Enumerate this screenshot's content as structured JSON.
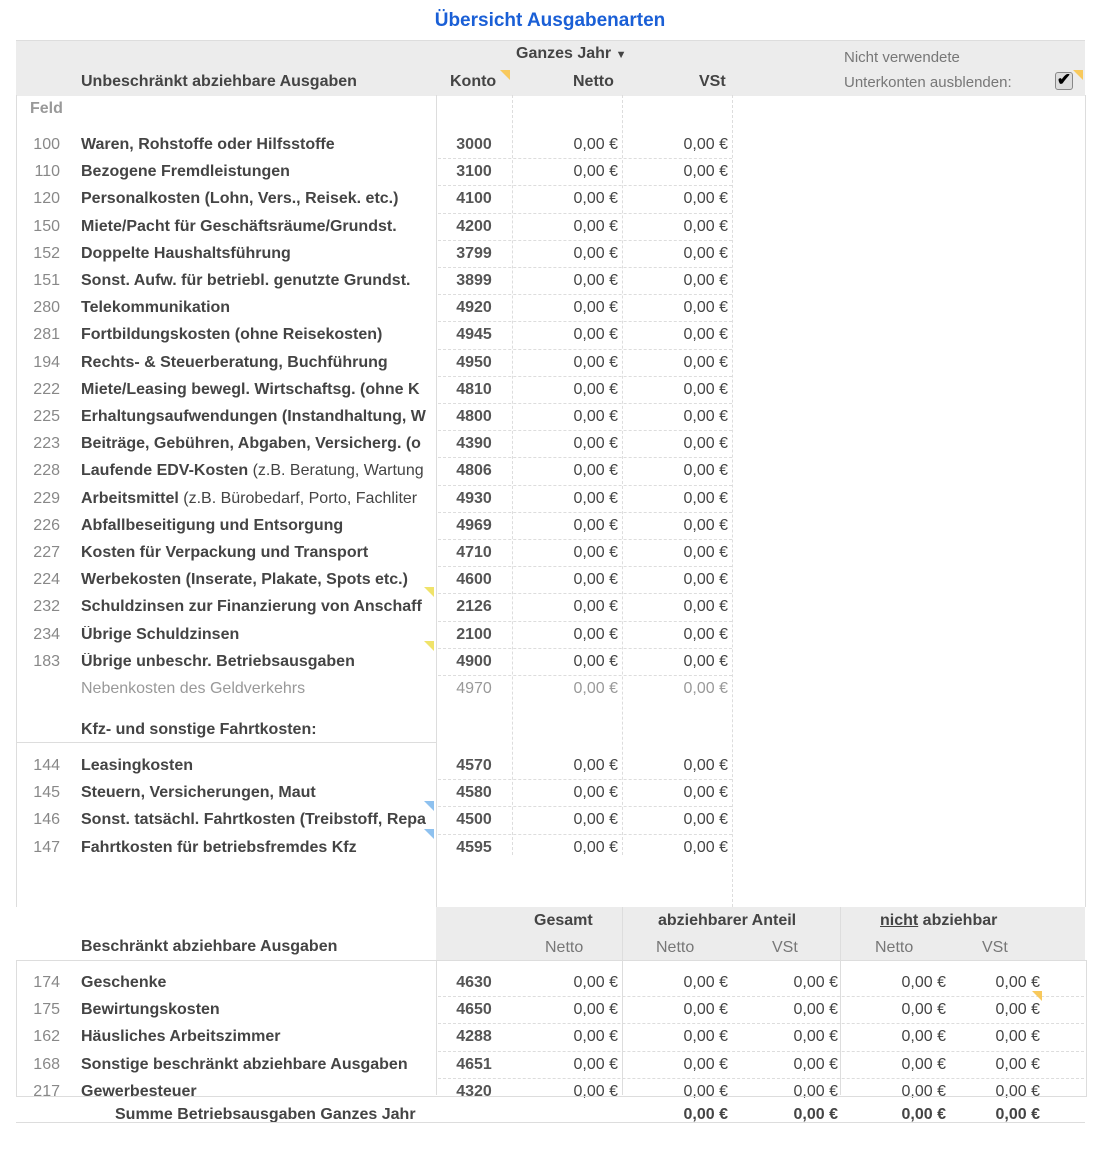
{
  "title": "Übersicht Ausgabenarten",
  "header": {
    "period": "Ganzes Jahr",
    "section1": "Unbeschränkt abziehbare Ausgaben",
    "konto": "Konto",
    "netto": "Netto",
    "vst": "VSt",
    "hide_line1": "Nicht verwendete",
    "hide_line2": "Unterkonten ausblenden:",
    "hide_checked": true,
    "feld": "Feld"
  },
  "rows1": [
    {
      "feld": "100",
      "label": "Waren, Rohstoffe oder Hilfsstoffe",
      "konto": "3000",
      "netto": "0,00 €",
      "vst": "0,00 €"
    },
    {
      "feld": "110",
      "label": "Bezogene Fremdleistungen",
      "konto": "3100",
      "netto": "0,00 €",
      "vst": "0,00 €"
    },
    {
      "feld": "120",
      "label": "Personalkosten (Lohn, Vers., Reisek. etc.)",
      "konto": "4100",
      "netto": "0,00 €",
      "vst": "0,00 €"
    },
    {
      "feld": "150",
      "label": "Miete/Pacht für Geschäftsräume/Grundst.",
      "konto": "4200",
      "netto": "0,00 €",
      "vst": "0,00 €"
    },
    {
      "feld": "152",
      "label": "Doppelte Haushaltsführung",
      "konto": "3799",
      "netto": "0,00 €",
      "vst": "0,00 €"
    },
    {
      "feld": "151",
      "label": "Sonst. Aufw. für betriebl. genutzte Grundst.",
      "konto": "3899",
      "netto": "0,00 €",
      "vst": "0,00 €"
    },
    {
      "feld": "280",
      "label": "Telekommunikation",
      "konto": "4920",
      "netto": "0,00 €",
      "vst": "0,00 €"
    },
    {
      "feld": "281",
      "label": "Fortbildungskosten (ohne Reisekosten)",
      "konto": "4945",
      "netto": "0,00 €",
      "vst": "0,00 €"
    },
    {
      "feld": "194",
      "label": "Rechts- & Steuerberatung, Buchführung",
      "konto": "4950",
      "netto": "0,00 €",
      "vst": "0,00 €"
    },
    {
      "feld": "222",
      "label": "Miete/Leasing bewegl. Wirtschaftsg. (ohne K",
      "konto": "4810",
      "netto": "0,00 €",
      "vst": "0,00 €"
    },
    {
      "feld": "225",
      "label": "Erhaltungsaufwendungen (Instandhaltung, W",
      "konto": "4800",
      "netto": "0,00 €",
      "vst": "0,00 €"
    },
    {
      "feld": "223",
      "label": "Beiträge, Gebühren, Abgaben, Versicherg. (o",
      "konto": "4390",
      "netto": "0,00 €",
      "vst": "0,00 €"
    },
    {
      "feld": "228",
      "label": "Laufende EDV-Kosten",
      "label_note": " (z.B. Beratung, Wartung",
      "konto": "4806",
      "netto": "0,00 €",
      "vst": "0,00 €"
    },
    {
      "feld": "229",
      "label": "Arbeitsmittel",
      "label_note": " (z.B. Bürobedarf, Porto, Fachliter",
      "konto": "4930",
      "netto": "0,00 €",
      "vst": "0,00 €"
    },
    {
      "feld": "226",
      "label": "Abfallbeseitigung und Entsorgung",
      "konto": "4969",
      "netto": "0,00 €",
      "vst": "0,00 €"
    },
    {
      "feld": "227",
      "label": "Kosten für Verpackung und Transport",
      "konto": "4710",
      "netto": "0,00 €",
      "vst": "0,00 €"
    },
    {
      "feld": "224",
      "label": "Werbekosten (Inserate, Plakate, Spots etc.)",
      "konto": "4600",
      "netto": "0,00 €",
      "vst": "0,00 €"
    },
    {
      "feld": "232",
      "label": "Schuldzinsen zur Finanzierung von Anschaff",
      "konto": "2126",
      "netto": "0,00 €",
      "vst": "0,00 €"
    },
    {
      "feld": "234",
      "label": "Übrige Schuldzinsen",
      "konto": "2100",
      "netto": "0,00 €",
      "vst": "0,00 €"
    },
    {
      "feld": "183",
      "label": "Übrige unbeschr. Betriebsausgaben",
      "konto": "4900",
      "netto": "0,00 €",
      "vst": "0,00 €"
    },
    {
      "feld": "",
      "label": "Nebenkosten des Geldverkehrs",
      "konto": "4970",
      "netto": "0,00 €",
      "vst": "0,00 €",
      "dim": true
    }
  ],
  "kfz_title": "Kfz- und sonstige Fahrtkosten:",
  "rows_kfz": [
    {
      "feld": "144",
      "label": "Leasingkosten",
      "konto": "4570",
      "netto": "0,00 €",
      "vst": "0,00 €"
    },
    {
      "feld": "145",
      "label": "Steuern, Versicherungen, Maut",
      "konto": "4580",
      "netto": "0,00 €",
      "vst": "0,00 €"
    },
    {
      "feld": "146",
      "label": "Sonst. tatsächl. Fahrtkosten (Treibstoff, Repa",
      "konto": "4500",
      "netto": "0,00 €",
      "vst": "0,00 €"
    },
    {
      "feld": "147",
      "label": "Fahrtkosten für betriebsfremdes Kfz",
      "konto": "4595",
      "netto": "0,00 €",
      "vst": "0,00 €"
    }
  ],
  "header2": {
    "section": "Beschränkt abziehbare Ausgaben",
    "gesamt": "Gesamt",
    "abziehbar": "abziehbarer Anteil",
    "nicht": "nicht",
    "nicht_rest": " abziehbar",
    "netto": "Netto",
    "vst": "VSt"
  },
  "rows2": [
    {
      "feld": "174",
      "label": "Geschenke",
      "konto": "4630",
      "v": [
        "0,00 €",
        "0,00 €",
        "0,00 €",
        "0,00 €",
        "0,00 €"
      ]
    },
    {
      "feld": "175",
      "label": "Bewirtungskosten",
      "konto": "4650",
      "v": [
        "0,00 €",
        "0,00 €",
        "0,00 €",
        "0,00 €",
        "0,00 €"
      ]
    },
    {
      "feld": "162",
      "label": "Häusliches Arbeitszimmer",
      "konto": "4288",
      "v": [
        "0,00 €",
        "0,00 €",
        "0,00 €",
        "0,00 €",
        "0,00 €"
      ]
    },
    {
      "feld": "168",
      "label": "Sonstige beschränkt abziehbare Ausgaben",
      "konto": "4651",
      "v": [
        "0,00 €",
        "0,00 €",
        "0,00 €",
        "0,00 €",
        "0,00 €"
      ]
    },
    {
      "feld": "217",
      "label": "Gewerbesteuer",
      "konto": "4320",
      "v": [
        "0,00 €",
        "0,00 €",
        "0,00 €",
        "0,00 €",
        "0,00 €"
      ]
    }
  ],
  "summe": {
    "label": "Summe Betriebsausgaben Ganzes Jahr",
    "v": [
      "0,00 €",
      "0,00 €",
      "0,00 €",
      "0,00 €"
    ]
  }
}
